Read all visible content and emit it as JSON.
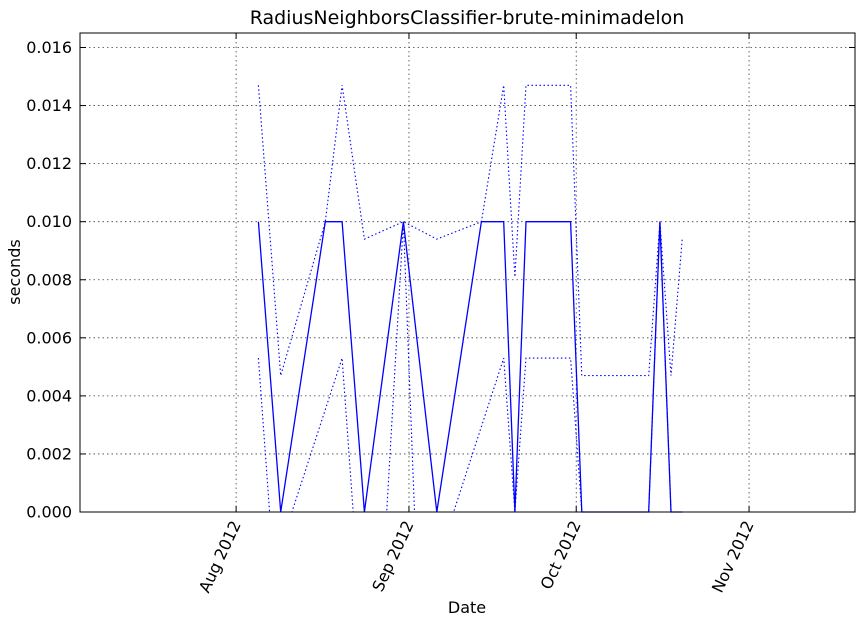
{
  "chart_data": {
    "type": "line",
    "title": "RadiusNeighborsClassifier-brute-minimadelon",
    "xlabel": "Date",
    "ylabel": "seconds",
    "xlim": [
      "2012-07-04",
      "2012-11-20"
    ],
    "ylim": [
      0,
      0.0165
    ],
    "grid": true,
    "x_ticks": [
      {
        "date": "2012-08-01",
        "label": "Aug 2012"
      },
      {
        "date": "2012-09-01",
        "label": "Sep 2012"
      },
      {
        "date": "2012-10-01",
        "label": "Oct 2012"
      },
      {
        "date": "2012-11-01",
        "label": "Nov 2012"
      }
    ],
    "y_ticks": [
      "0.000",
      "0.002",
      "0.004",
      "0.006",
      "0.008",
      "0.010",
      "0.012",
      "0.014",
      "0.016"
    ],
    "color": "#0000ff",
    "series": [
      {
        "style": "solid",
        "x": [
          "2012-08-05",
          "2012-08-09",
          "2012-08-17",
          "2012-08-20",
          "2012-08-24",
          "2012-08-31",
          "2012-09-06",
          "2012-09-14",
          "2012-09-18",
          "2012-09-20",
          "2012-09-22",
          "2012-09-30",
          "2012-10-02",
          "2012-10-14",
          "2012-10-16",
          "2012-10-18",
          "2012-10-20"
        ],
        "y": [
          0.01,
          0.0,
          0.01,
          0.01,
          0.0,
          0.01,
          0.0,
          0.01,
          0.01,
          0.0,
          0.01,
          0.01,
          0.0,
          0.0,
          0.01,
          0.0,
          0.0
        ]
      },
      {
        "style": "dotted",
        "x": [
          "2012-08-05",
          "2012-08-09",
          "2012-08-17",
          "2012-08-20",
          "2012-08-24",
          "2012-08-31",
          "2012-09-06",
          "2012-09-14",
          "2012-09-18",
          "2012-09-20",
          "2012-09-22",
          "2012-09-30",
          "2012-10-02",
          "2012-10-14",
          "2012-10-16",
          "2012-10-18",
          "2012-10-20"
        ],
        "y": [
          0.0147,
          0.0047,
          0.01,
          0.0147,
          0.0094,
          0.01,
          0.0094,
          0.01,
          0.0147,
          0.0081,
          0.0147,
          0.0147,
          0.0047,
          0.0047,
          0.01,
          0.0047,
          0.0094
        ]
      },
      {
        "style": "dotted",
        "x": [
          "2012-08-05",
          "2012-08-07",
          "2012-08-09",
          "2012-08-11",
          "2012-08-20",
          "2012-08-22",
          "2012-08-28",
          "2012-08-31",
          "2012-09-02",
          "2012-09-09",
          "2012-09-18",
          "2012-09-20",
          "2012-09-22",
          "2012-09-30",
          "2012-10-02",
          "2012-10-14",
          "2012-10-16",
          "2012-10-18"
        ],
        "y": [
          0.0053,
          0.0,
          0.0,
          0.0,
          0.0053,
          0.0,
          0.0,
          0.01,
          0.0,
          0.0,
          0.0053,
          0.0,
          0.0053,
          0.0053,
          0.0,
          0.0,
          0.01,
          0.0
        ]
      }
    ]
  }
}
